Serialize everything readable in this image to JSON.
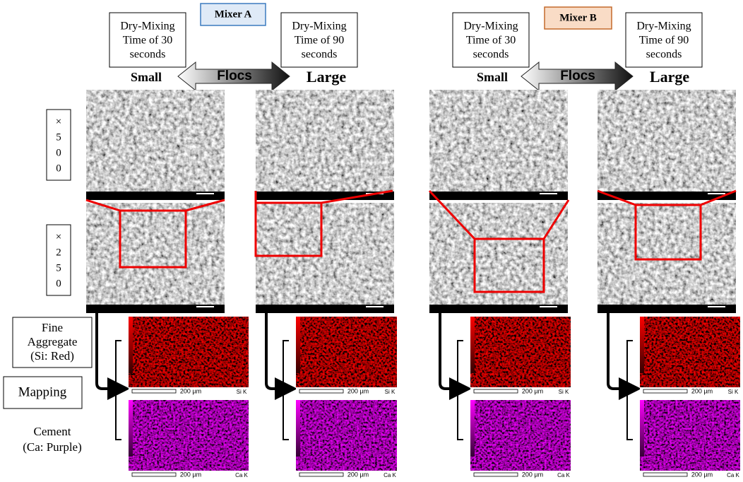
{
  "mixers": [
    {
      "label": "Mixer A",
      "flocs": "Flocs"
    },
    {
      "label": "Mixer B",
      "flocs": "Flocs"
    }
  ],
  "columns": [
    {
      "time": [
        "Dry-Mixing",
        "Time of 30",
        "seconds"
      ],
      "size": "Small"
    },
    {
      "time": [
        "Dry-Mixing",
        "Time of 90",
        "seconds"
      ],
      "size": "Large"
    },
    {
      "time": [
        "Dry-Mixing",
        "Time of 30",
        "seconds"
      ],
      "size": "Small"
    },
    {
      "time": [
        "Dry-Mixing",
        "Time of 90",
        "seconds"
      ],
      "size": "Large"
    }
  ],
  "row_labels": {
    "x500": [
      "×",
      "5",
      "0",
      "0"
    ],
    "x250": [
      "×",
      "2",
      "5",
      "0"
    ]
  },
  "side_labels": {
    "fine_aggregate": [
      "Fine",
      "Aggregate",
      "(Si: Red)"
    ],
    "mapping": "Mapping",
    "cement": [
      "Cement",
      "(Ca: Purple)"
    ]
  },
  "maps": {
    "scale": "200 µm",
    "si": "Si K",
    "ca": "Ca K"
  }
}
